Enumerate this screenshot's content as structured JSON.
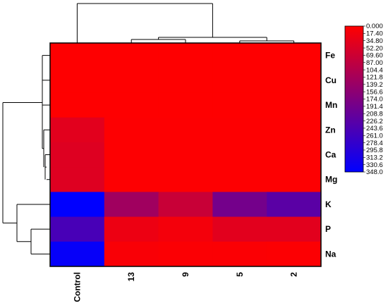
{
  "chart_data": {
    "type": "heatmap",
    "rows": [
      "Fe",
      "Cu",
      "Mn",
      "Zn",
      "Ca",
      "Mg",
      "K",
      "P",
      "Na"
    ],
    "columns": [
      "Control",
      "13",
      "9",
      "5",
      "2"
    ],
    "values": [
      [
        2,
        2,
        2,
        2,
        2
      ],
      [
        2,
        2,
        2,
        2,
        2
      ],
      [
        2,
        2,
        2,
        2,
        2
      ],
      [
        40,
        3,
        3,
        3,
        3
      ],
      [
        45,
        3,
        3,
        3,
        3
      ],
      [
        45,
        3,
        3,
        3,
        3
      ],
      [
        348,
        130,
        75,
        190,
        225
      ],
      [
        250,
        25,
        15,
        40,
        40
      ],
      [
        340,
        8,
        6,
        5,
        4
      ]
    ],
    "color_scale": {
      "min": 0,
      "max": 348,
      "low_color": "#ff0000",
      "high_color": "#0000ff",
      "tick_labels": [
        "0.000",
        "17.40",
        "34.80",
        "52.20",
        "69.60",
        "87.00",
        "104.4",
        "121.8",
        "139.2",
        "156.6",
        "174.0",
        "191.4",
        "208.8",
        "226.2",
        "243.6",
        "261.0",
        "278.4",
        "295.8",
        "313.2",
        "330.6",
        "348.0"
      ]
    },
    "row_dendrogram": true,
    "column_dendrogram": true
  }
}
